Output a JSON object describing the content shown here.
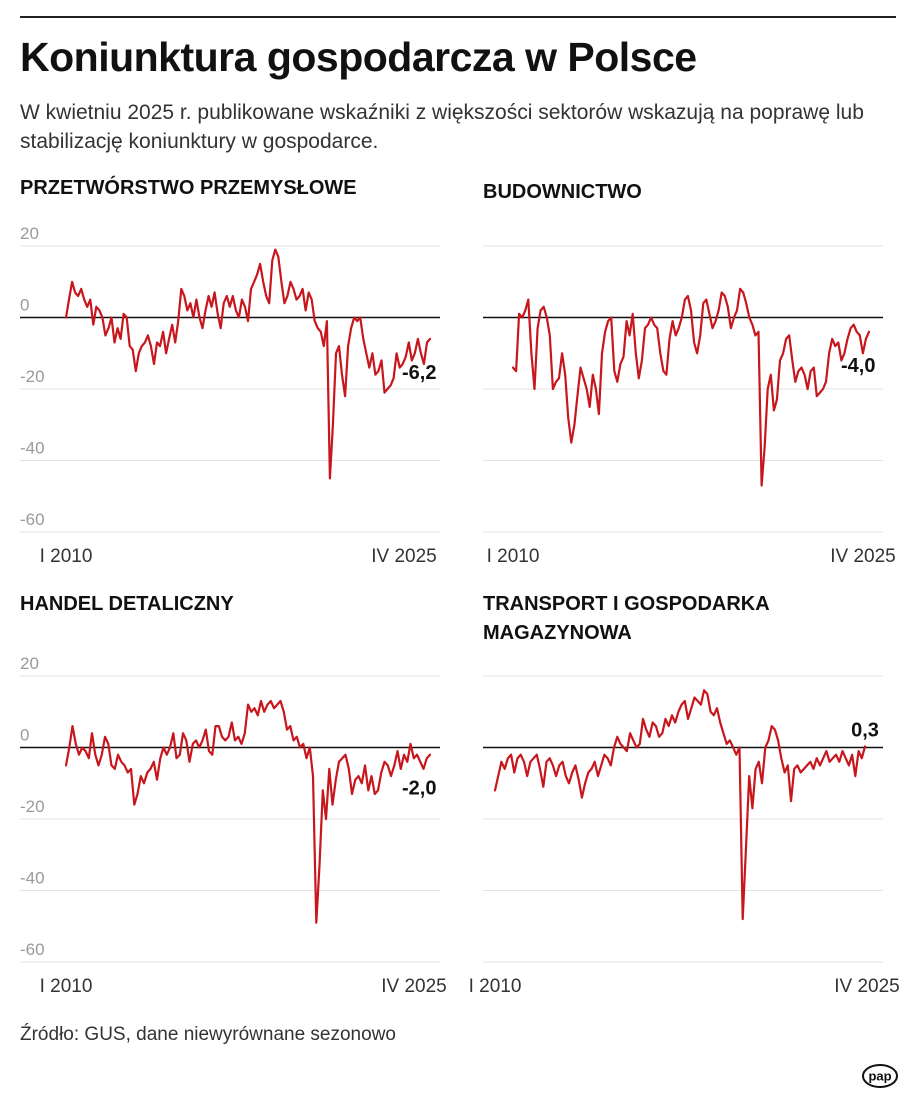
{
  "header": {
    "title": "Koniunktura gospodarcza w Polsce",
    "subtitle": "W kwietniu 2025 r. publikowane wskaźniki z większości sektorów wskazują na poprawę lub stabilizację koniunktury w gospodarce."
  },
  "footer": {
    "source": "Źródło: GUS, dane niewyrównane sezonowo",
    "logo_text": "pap"
  },
  "colors": {
    "line": "#c8161d",
    "zero_line": "#111111",
    "grid": "#e3e3e3",
    "axis_text": "#9a9a9a"
  },
  "chart_data": [
    {
      "type": "line",
      "title": "PRZETWÓRSTWO PRZEMYSŁOWE",
      "x_start_label": "I 2010",
      "x_end_label": "IV 2025",
      "ylim": [
        -60,
        20
      ],
      "yticks": [
        "20",
        "0",
        "-20",
        "-40",
        "-60"
      ],
      "grid": true,
      "last_value_label": "-6,2",
      "series": [
        {
          "values": [
            0,
            5,
            10,
            7,
            6,
            8,
            5,
            3,
            5,
            -2,
            3,
            2,
            0,
            -5,
            -3,
            0,
            -7,
            -3,
            -6,
            1,
            0,
            -8,
            -9,
            -15,
            -10,
            -8,
            -7,
            -5,
            -8,
            -13,
            -7,
            -8,
            -4,
            -10,
            -6,
            -2,
            -7,
            -1,
            8,
            6,
            2,
            4,
            0,
            5,
            0,
            -3,
            2,
            6,
            3,
            7,
            1,
            -3,
            4,
            6,
            3,
            6,
            2,
            0,
            5,
            3,
            -1,
            8,
            10,
            12,
            15,
            10,
            6,
            4,
            16,
            19,
            17,
            10,
            4,
            6,
            10,
            8,
            5,
            6,
            8,
            2,
            7,
            5,
            -1,
            -3,
            -4,
            -8,
            -1,
            -45,
            -30,
            -10,
            -8,
            -16,
            -22,
            -8,
            -3,
            0,
            -1,
            0,
            -6,
            -10,
            -14,
            -10,
            -16,
            -15,
            -12,
            -21,
            -20,
            -19,
            -17,
            -10,
            -14,
            -13,
            -11,
            -7,
            -12,
            -10,
            -6,
            -10,
            -13,
            -7,
            -6
          ]
        }
      ]
    },
    {
      "type": "line",
      "title": "BUDOWNICTWO",
      "x_start_label": "I 2010",
      "x_end_label": "IV 2025",
      "ylim": [
        -60,
        20
      ],
      "yticks": [],
      "grid": true,
      "last_value_label": "-4,0",
      "series": [
        {
          "values": [
            -14,
            -15,
            1,
            0,
            2,
            5,
            -10,
            -20,
            -3,
            2,
            3,
            0,
            -5,
            -20,
            -18,
            -17,
            -10,
            -16,
            -28,
            -35,
            -30,
            -22,
            -14,
            -17,
            -20,
            -25,
            -16,
            -20,
            -27,
            -10,
            -4,
            -1,
            0,
            -15,
            -18,
            -13,
            -11,
            -1,
            -5,
            1,
            -10,
            -17,
            -12,
            -3,
            -2,
            0,
            -2,
            -3,
            -10,
            -15,
            -16,
            -6,
            -1,
            -5,
            -3,
            0,
            5,
            6,
            2,
            -7,
            -10,
            -5,
            4,
            5,
            1,
            -3,
            -1,
            2,
            7,
            6,
            3,
            -3,
            0,
            2,
            8,
            7,
            4,
            0,
            -2,
            -5,
            -4,
            -47,
            -36,
            -20,
            -16,
            -26,
            -23,
            -12,
            -10,
            -6,
            -5,
            -12,
            -18,
            -15,
            -14,
            -16,
            -20,
            -15,
            -14,
            -22,
            -21,
            -20,
            -18,
            -10,
            -6,
            -8,
            -7,
            -12,
            -10,
            -6,
            -3,
            -2,
            -4,
            -5,
            -10,
            -6,
            -4
          ]
        }
      ]
    },
    {
      "type": "line",
      "title": "HANDEL DETALICZNY",
      "x_start_label": "I 2010",
      "x_end_label": "IV 2025",
      "ylim": [
        -60,
        20
      ],
      "yticks": [
        "20",
        "0",
        "-20",
        "-40",
        "-60"
      ],
      "grid": true,
      "last_value_label": "-2,0",
      "series": [
        {
          "values": [
            -5,
            0,
            6,
            1,
            -2,
            0,
            -1,
            -3,
            4,
            -2,
            -5,
            -2,
            3,
            1,
            -5,
            -6,
            -2,
            -4,
            -5,
            -7,
            -6,
            -16,
            -13,
            -8,
            -10,
            -7,
            -6,
            -4,
            -9,
            -3,
            0,
            -2,
            0,
            4,
            -3,
            -2,
            4,
            2,
            -4,
            1,
            2,
            0,
            2,
            5,
            -1,
            -2,
            6,
            6,
            3,
            2,
            3,
            7,
            2,
            3,
            1,
            4,
            12,
            10,
            11,
            9,
            13,
            10,
            12,
            13,
            11,
            12,
            13,
            10,
            5,
            6,
            2,
            3,
            0,
            1,
            -3,
            0,
            -8,
            -49,
            -33,
            -12,
            -20,
            -6,
            -16,
            -9,
            -4,
            -3,
            -2,
            -6,
            -13,
            -9,
            -8,
            -10,
            -5,
            -12,
            -8,
            -13,
            -12,
            -7,
            -4,
            -5,
            -8,
            -5,
            -1,
            -6,
            -2,
            -4,
            1,
            -3,
            -2,
            -4,
            -6,
            -3,
            -2
          ]
        }
      ]
    },
    {
      "type": "line",
      "title": "TRANSPORT I GOSPODARKA MAGAZYNOWA",
      "x_start_label": "I 2010",
      "x_end_label": "IV 2025",
      "ylim": [
        -60,
        20
      ],
      "yticks": [],
      "grid": true,
      "last_value_label": "0,3",
      "series": [
        {
          "values": [
            -12,
            -8,
            -4,
            -6,
            -3,
            -2,
            -7,
            -3,
            -2,
            -4,
            -8,
            -4,
            -3,
            -2,
            -6,
            -11,
            -4,
            -3,
            -5,
            -8,
            -5,
            -4,
            -8,
            -10,
            -7,
            -5,
            -9,
            -14,
            -10,
            -7,
            -6,
            -4,
            -8,
            -5,
            -2,
            -3,
            -5,
            0,
            3,
            1,
            0,
            -1,
            4,
            2,
            0,
            1,
            8,
            5,
            3,
            7,
            6,
            3,
            4,
            8,
            6,
            9,
            7,
            10,
            12,
            13,
            8,
            11,
            14,
            13,
            12,
            16,
            15,
            10,
            9,
            11,
            7,
            4,
            1,
            2,
            0,
            -2,
            0,
            -48,
            -28,
            -8,
            -17,
            -6,
            -4,
            -10,
            0,
            2,
            6,
            5,
            2,
            -3,
            -7,
            -5,
            -15,
            -6,
            -5,
            -7,
            -6,
            -5,
            -4,
            -6,
            -3,
            -5,
            -3,
            -1,
            -4,
            -3,
            -2,
            -4,
            -1,
            -3,
            -5,
            -2,
            -8,
            -1,
            -3,
            0.3
          ]
        }
      ]
    }
  ]
}
